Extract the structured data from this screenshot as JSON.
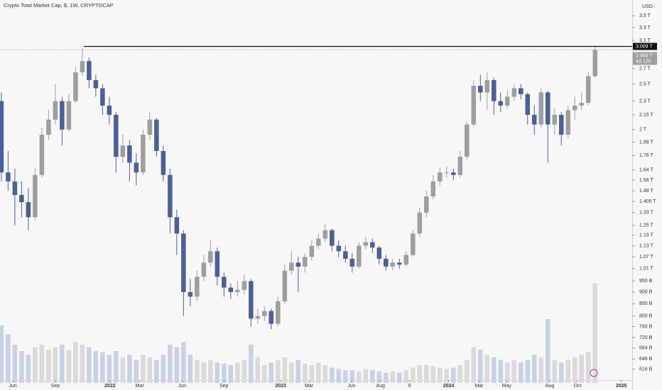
{
  "chart_data": {
    "type": "candlestick",
    "title": "Crypto Total Market Cap, $, 1W, CRYPTOCAP",
    "currency": "USD",
    "log_scale": true,
    "up_color": "#9e9e9e",
    "down_color": "#4a5f9c",
    "volume_up_color": "#dadada",
    "volume_down_color": "#c8d1e7",
    "opens": [
      2.3,
      1.62,
      1.55,
      1.45,
      1.4,
      1.3,
      1.6,
      1.95,
      2.1,
      2.3,
      2.0,
      2.3,
      2.65,
      2.8,
      2.55,
      2.45,
      2.25,
      2.15,
      1.75,
      1.85,
      1.7,
      1.62,
      1.95,
      2.1,
      1.8,
      1.6,
      1.3,
      1.2,
      0.9,
      0.88,
      0.97,
      1.04,
      1.1,
      0.97,
      0.92,
      0.9,
      0.91,
      0.95,
      0.79,
      0.8,
      0.82,
      0.77,
      0.86,
      1.0,
      1.04,
      1.02,
      1.07,
      1.13,
      1.17,
      1.22,
      1.13,
      1.1,
      1.06,
      1.02,
      1.13,
      1.15,
      1.12,
      1.06,
      1.02,
      1.04,
      1.03,
      1.08,
      1.2,
      1.33,
      1.44,
      1.55,
      1.62,
      1.62,
      1.6,
      1.75,
      2.05,
      2.48,
      2.4,
      2.55,
      2.3,
      2.25,
      2.35,
      2.45,
      2.38,
      2.15,
      2.05,
      2.4,
      2.05,
      2.15,
      1.95,
      2.2,
      2.25,
      2.28,
      2.6
    ],
    "highs": [
      2.4,
      1.8,
      1.65,
      1.55,
      1.5,
      1.66,
      2.02,
      2.2,
      2.5,
      2.35,
      2.38,
      2.72,
      2.98,
      2.85,
      2.62,
      2.5,
      2.35,
      2.18,
      1.95,
      1.9,
      1.78,
      2.0,
      2.18,
      2.12,
      1.85,
      1.65,
      1.35,
      1.22,
      0.96,
      1.0,
      1.08,
      1.16,
      1.12,
      0.99,
      0.94,
      0.95,
      0.98,
      0.96,
      0.83,
      0.84,
      0.83,
      0.88,
      1.03,
      1.1,
      1.07,
      1.09,
      1.16,
      1.2,
      1.26,
      1.23,
      1.16,
      1.13,
      1.09,
      1.15,
      1.18,
      1.17,
      1.13,
      1.08,
      1.06,
      1.06,
      1.1,
      1.22,
      1.36,
      1.48,
      1.6,
      1.66,
      1.67,
      1.65,
      1.8,
      2.08,
      2.55,
      2.62,
      2.65,
      2.58,
      2.4,
      2.42,
      2.5,
      2.5,
      2.4,
      2.25,
      2.45,
      2.42,
      2.22,
      2.18,
      2.25,
      2.35,
      2.4,
      2.65,
      3.009
    ],
    "lows": [
      1.55,
      1.48,
      1.25,
      1.3,
      1.22,
      1.28,
      1.58,
      1.9,
      2.05,
      1.85,
      1.98,
      2.28,
      2.6,
      2.45,
      2.35,
      2.15,
      2.05,
      1.62,
      1.7,
      1.55,
      1.52,
      1.6,
      1.9,
      1.75,
      1.55,
      1.2,
      1.08,
      0.8,
      0.84,
      0.86,
      0.95,
      1.02,
      0.93,
      0.88,
      0.87,
      0.88,
      0.89,
      0.76,
      0.77,
      0.78,
      0.75,
      0.76,
      0.85,
      0.98,
      0.9,
      0.99,
      1.05,
      1.11,
      1.15,
      1.1,
      1.07,
      1.04,
      0.99,
      1.01,
      1.11,
      1.09,
      1.03,
      1.0,
      1.0,
      1.01,
      1.02,
      1.07,
      1.18,
      1.3,
      1.42,
      1.52,
      1.58,
      1.56,
      1.58,
      1.73,
      2.03,
      2.3,
      2.2,
      2.15,
      2.18,
      2.22,
      2.3,
      2.32,
      2.05,
      1.95,
      2.02,
      1.7,
      1.95,
      1.85,
      1.92,
      2.1,
      2.2,
      2.25,
      2.58
    ],
    "closes": [
      1.62,
      1.55,
      1.45,
      1.4,
      1.3,
      1.6,
      1.95,
      2.1,
      2.3,
      2.0,
      2.3,
      2.65,
      2.8,
      2.55,
      2.45,
      2.25,
      2.15,
      1.75,
      1.85,
      1.7,
      1.62,
      1.95,
      2.1,
      1.8,
      1.6,
      1.3,
      1.2,
      0.9,
      0.88,
      0.97,
      1.04,
      1.1,
      0.97,
      0.92,
      0.9,
      0.91,
      0.95,
      0.79,
      0.8,
      0.82,
      0.77,
      0.86,
      1.0,
      1.04,
      1.02,
      1.07,
      1.13,
      1.17,
      1.22,
      1.13,
      1.1,
      1.06,
      1.02,
      1.13,
      1.15,
      1.12,
      1.06,
      1.02,
      1.04,
      1.03,
      1.08,
      1.2,
      1.33,
      1.44,
      1.55,
      1.62,
      1.62,
      1.6,
      1.75,
      2.05,
      2.48,
      2.4,
      2.55,
      2.3,
      2.25,
      2.35,
      2.45,
      2.38,
      2.15,
      2.05,
      2.4,
      2.05,
      2.15,
      1.95,
      2.2,
      2.25,
      2.28,
      2.6,
      2.959
    ],
    "volumes": [
      45,
      38,
      30,
      25,
      22,
      28,
      30,
      26,
      28,
      30,
      26,
      32,
      30,
      28,
      25,
      24,
      22,
      25,
      20,
      22,
      18,
      22,
      20,
      18,
      22,
      30,
      28,
      32,
      22,
      18,
      16,
      18,
      16,
      15,
      14,
      16,
      18,
      30,
      20,
      14,
      16,
      18,
      20,
      16,
      18,
      15,
      14,
      16,
      14,
      12,
      11,
      10,
      10,
      9,
      11,
      10,
      9,
      8,
      9,
      8,
      10,
      12,
      14,
      14,
      13,
      12,
      11,
      12,
      14,
      18,
      28,
      26,
      22,
      20,
      18,
      16,
      18,
      16,
      18,
      22,
      20,
      50,
      18,
      16,
      18,
      20,
      22,
      24,
      78
    ],
    "xlim": [
      -0.2,
      93.5
    ],
    "xticks": [
      {
        "value": 1.7,
        "label": "Jun"
      },
      {
        "value": 8,
        "label": "Sep"
      },
      {
        "value": 16.1,
        "label": "2022"
      },
      {
        "value": 20.5,
        "label": "Mar"
      },
      {
        "value": 26.8,
        "label": "Jun"
      },
      {
        "value": 33,
        "label": "Sep"
      },
      {
        "value": 41.4,
        "label": "2023"
      },
      {
        "value": 45.6,
        "label": "Mar"
      },
      {
        "value": 51.9,
        "label": "Jun"
      },
      {
        "value": 56.2,
        "label": "Aug"
      },
      {
        "value": 60.5,
        "label": "9"
      },
      {
        "value": 66.3,
        "label": "2024"
      },
      {
        "value": 70.8,
        "label": "Mar"
      },
      {
        "value": 74.9,
        "label": "May"
      },
      {
        "value": 81.3,
        "label": "Aug"
      },
      {
        "value": 85.4,
        "label": "Oct"
      },
      {
        "value": 91.9,
        "label": "2025"
      }
    ],
    "ylim": [
      0.576,
      3.78
    ],
    "yticks": [
      {
        "value": 3.5,
        "label": "3.5 T"
      },
      {
        "value": 3.3,
        "label": "3.3 T"
      },
      {
        "value": 3.1,
        "label": "3.1 T"
      },
      {
        "value": 2.7,
        "label": "2.7 T"
      },
      {
        "value": 2.5,
        "label": "2.5 T"
      },
      {
        "value": 2.3,
        "label": "2.3 T"
      },
      {
        "value": 2.15,
        "label": "2.15 T"
      },
      {
        "value": 2,
        "label": "2 T"
      },
      {
        "value": 1.88,
        "label": "1.88 T"
      },
      {
        "value": 1.76,
        "label": "1.76 T"
      },
      {
        "value": 1.64,
        "label": "1.64 T"
      },
      {
        "value": 1.56,
        "label": "1.56 T"
      },
      {
        "value": 1.48,
        "label": "1.48 T"
      },
      {
        "value": 1.405,
        "label": "1.405 T"
      },
      {
        "value": 1.33,
        "label": "1.33 T"
      },
      {
        "value": 1.25,
        "label": "1.25 T"
      },
      {
        "value": 1.19,
        "label": "1.19 T"
      },
      {
        "value": 1.13,
        "label": "1.13 T"
      },
      {
        "value": 1.07,
        "label": "1.07 T"
      },
      {
        "value": 1.01,
        "label": "1.01 T"
      },
      {
        "value": 0.95,
        "label": "950 B"
      },
      {
        "value": 0.9,
        "label": "900 B"
      },
      {
        "value": 0.85,
        "label": "850 B"
      },
      {
        "value": 0.8,
        "label": "800 B"
      },
      {
        "value": 0.76,
        "label": "760 B"
      },
      {
        "value": 0.72,
        "label": "720 B"
      },
      {
        "value": 0.684,
        "label": "684 B"
      },
      {
        "value": 0.648,
        "label": "648 B"
      },
      {
        "value": 0.616,
        "label": "616 B"
      }
    ],
    "y2lim": [
      0,
      100
    ],
    "high_line": {
      "value": 3.009,
      "label": "3.009 T"
    },
    "last_price": {
      "value": 2.959,
      "label": "2.959 T",
      "countdown": "4d 12h"
    }
  }
}
